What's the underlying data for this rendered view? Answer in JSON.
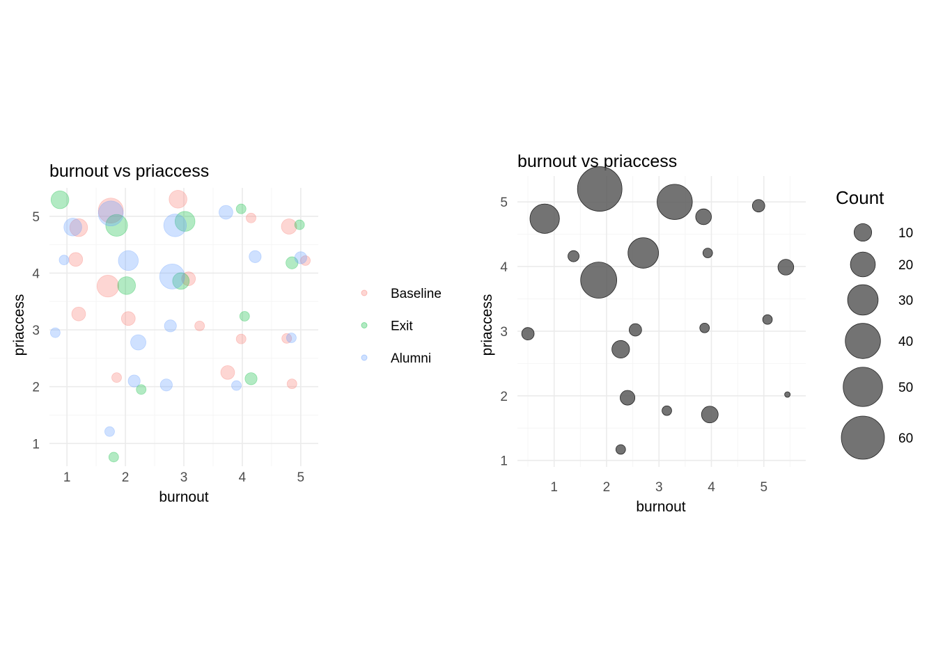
{
  "chart_data": [
    {
      "type": "scatter",
      "title": "burnout vs priaccess",
      "xlabel": "burnout",
      "ylabel": "priaccess",
      "xlim": [
        0.7,
        5.3
      ],
      "ylim": [
        0.6,
        5.5
      ],
      "xticks": [
        1,
        2,
        3,
        4,
        5
      ],
      "yticks": [
        1,
        2,
        3,
        4,
        5
      ],
      "grid": true,
      "legend_position": "right",
      "series": [
        {
          "name": "Baseline",
          "color": "#F8766D",
          "points": [
            {
              "x": 1.2,
              "y": 4.8,
              "size": 6
            },
            {
              "x": 1.75,
              "y": 5.1,
              "size": 14
            },
            {
              "x": 2.9,
              "y": 5.3,
              "size": 6
            },
            {
              "x": 4.15,
              "y": 4.97,
              "size": 1
            },
            {
              "x": 4.8,
              "y": 4.82,
              "size": 4
            },
            {
              "x": 5.08,
              "y": 4.22,
              "size": 1
            },
            {
              "x": 1.15,
              "y": 4.24,
              "size": 3
            },
            {
              "x": 1.7,
              "y": 3.77,
              "size": 10
            },
            {
              "x": 3.08,
              "y": 3.9,
              "size": 3
            },
            {
              "x": 1.2,
              "y": 3.28,
              "size": 3
            },
            {
              "x": 2.05,
              "y": 3.2,
              "size": 3
            },
            {
              "x": 3.27,
              "y": 3.07,
              "size": 1
            },
            {
              "x": 3.98,
              "y": 2.84,
              "size": 1
            },
            {
              "x": 4.76,
              "y": 2.85,
              "size": 1
            },
            {
              "x": 1.85,
              "y": 2.16,
              "size": 1
            },
            {
              "x": 3.75,
              "y": 2.25,
              "size": 3
            },
            {
              "x": 4.85,
              "y": 2.05,
              "size": 1
            }
          ]
        },
        {
          "name": "Exit",
          "color": "#00BA38",
          "points": [
            {
              "x": 0.88,
              "y": 5.29,
              "size": 6
            },
            {
              "x": 1.85,
              "y": 4.84,
              "size": 10
            },
            {
              "x": 3.02,
              "y": 4.91,
              "size": 8
            },
            {
              "x": 3.98,
              "y": 5.13,
              "size": 1
            },
            {
              "x": 4.98,
              "y": 4.85,
              "size": 1
            },
            {
              "x": 4.85,
              "y": 4.18,
              "size": 2
            },
            {
              "x": 2.02,
              "y": 3.78,
              "size": 6
            },
            {
              "x": 2.95,
              "y": 3.86,
              "size": 5
            },
            {
              "x": 4.04,
              "y": 3.24,
              "size": 1
            },
            {
              "x": 4.15,
              "y": 2.14,
              "size": 2
            },
            {
              "x": 2.27,
              "y": 1.95,
              "size": 1
            },
            {
              "x": 1.8,
              "y": 0.76,
              "size": 1
            }
          ]
        },
        {
          "name": "Alumni",
          "color": "#619CFF",
          "points": [
            {
              "x": 1.1,
              "y": 4.81,
              "size": 6
            },
            {
              "x": 1.75,
              "y": 5.05,
              "size": 14
            },
            {
              "x": 2.85,
              "y": 4.84,
              "size": 11
            },
            {
              "x": 3.72,
              "y": 5.07,
              "size": 3
            },
            {
              "x": 0.95,
              "y": 4.23,
              "size": 1
            },
            {
              "x": 2.05,
              "y": 4.22,
              "size": 8
            },
            {
              "x": 4.22,
              "y": 4.29,
              "size": 2
            },
            {
              "x": 5.0,
              "y": 4.27,
              "size": 2
            },
            {
              "x": 2.8,
              "y": 3.94,
              "size": 14
            },
            {
              "x": 0.8,
              "y": 2.95,
              "size": 1
            },
            {
              "x": 2.77,
              "y": 3.07,
              "size": 2
            },
            {
              "x": 2.22,
              "y": 2.78,
              "size": 4
            },
            {
              "x": 4.84,
              "y": 2.86,
              "size": 1
            },
            {
              "x": 2.15,
              "y": 2.1,
              "size": 2
            },
            {
              "x": 2.7,
              "y": 2.03,
              "size": 2
            },
            {
              "x": 3.9,
              "y": 2.02,
              "size": 1
            },
            {
              "x": 1.73,
              "y": 1.21,
              "size": 1
            }
          ]
        }
      ]
    },
    {
      "type": "scatter",
      "title": "burnout vs priaccess",
      "xlabel": "burnout",
      "ylabel": "priaccess",
      "xlim": [
        0.3,
        5.8
      ],
      "ylim": [
        0.9,
        5.4
      ],
      "xticks": [
        1,
        2,
        3,
        4,
        5
      ],
      "yticks": [
        1,
        2,
        3,
        4,
        5
      ],
      "grid": true,
      "legend_position": "right",
      "legend_title": "Count",
      "size_breaks": [
        10,
        20,
        30,
        40,
        50,
        60
      ],
      "point_color": "#5a5a5a",
      "points": [
        {
          "x": 1.87,
          "y": 5.2,
          "count": 64
        },
        {
          "x": 3.3,
          "y": 5.0,
          "count": 40
        },
        {
          "x": 0.82,
          "y": 4.74,
          "count": 28
        },
        {
          "x": 3.85,
          "y": 4.77,
          "count": 8
        },
        {
          "x": 4.9,
          "y": 4.94,
          "count": 5
        },
        {
          "x": 1.37,
          "y": 4.16,
          "count": 4
        },
        {
          "x": 2.7,
          "y": 4.21,
          "count": 30
        },
        {
          "x": 3.93,
          "y": 4.21,
          "count": 3
        },
        {
          "x": 5.42,
          "y": 3.99,
          "count": 8
        },
        {
          "x": 1.85,
          "y": 3.79,
          "count": 42
        },
        {
          "x": 0.5,
          "y": 2.96,
          "count": 5
        },
        {
          "x": 2.55,
          "y": 3.02,
          "count": 5
        },
        {
          "x": 3.87,
          "y": 3.05,
          "count": 3
        },
        {
          "x": 5.07,
          "y": 3.18,
          "count": 3
        },
        {
          "x": 2.27,
          "y": 2.72,
          "count": 10
        },
        {
          "x": 2.4,
          "y": 1.97,
          "count": 7
        },
        {
          "x": 3.15,
          "y": 1.77,
          "count": 3
        },
        {
          "x": 3.97,
          "y": 1.71,
          "count": 9
        },
        {
          "x": 5.45,
          "y": 2.02,
          "count": 1
        },
        {
          "x": 2.27,
          "y": 1.17,
          "count": 3
        }
      ]
    }
  ]
}
